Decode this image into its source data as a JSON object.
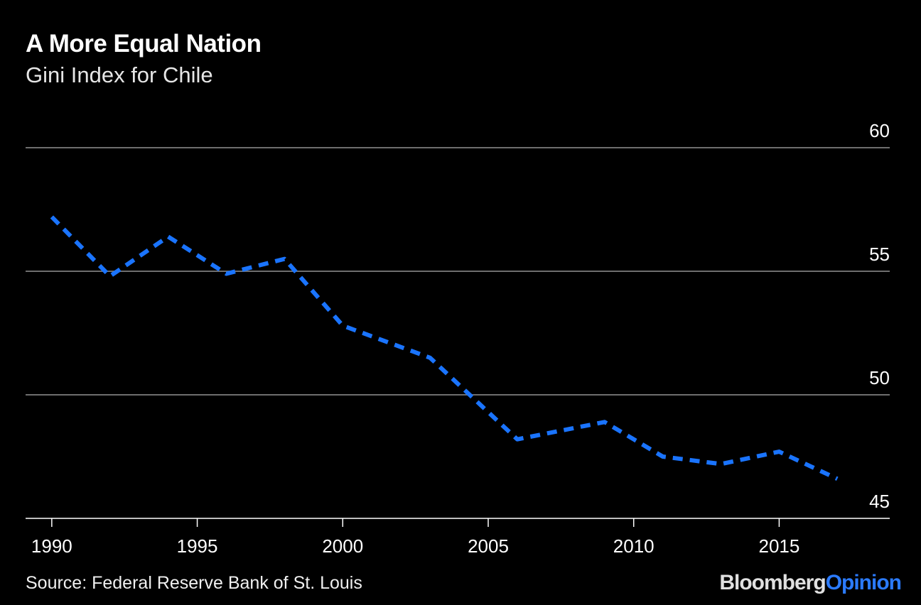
{
  "title": "A More Equal Nation",
  "subtitle": "Gini Index for Chile",
  "source": "Source: Federal Reserve Bank of St. Louis",
  "brand": {
    "part1": "Bloomberg",
    "part2": "Opinion"
  },
  "colors": {
    "background": "#000000",
    "line": "#1a74ff",
    "grid": "#6e6e6e",
    "text": "#ffffff"
  },
  "chart_data": {
    "type": "line",
    "title": "A More Equal Nation",
    "subtitle": "Gini Index for Chile",
    "x": [
      1990,
      1992,
      1994,
      1996,
      1998,
      2000,
      2003,
      2006,
      2009,
      2011,
      2013,
      2015,
      2017
    ],
    "series": [
      {
        "values": [
          57.2,
          54.8,
          56.4,
          54.9,
          55.5,
          52.8,
          51.5,
          48.2,
          48.9,
          47.5,
          47.2,
          47.7,
          46.6
        ],
        "style": "dashed"
      }
    ],
    "xlim": [
      1989.1,
      2018.8
    ],
    "ylim": [
      45,
      60
    ],
    "xticks": [
      "1990",
      "1995",
      "2000",
      "2005",
      "2010",
      "2015"
    ],
    "yticks": [
      "60",
      "55",
      "50",
      "45"
    ],
    "grid": true,
    "y_axis_position": "right"
  }
}
